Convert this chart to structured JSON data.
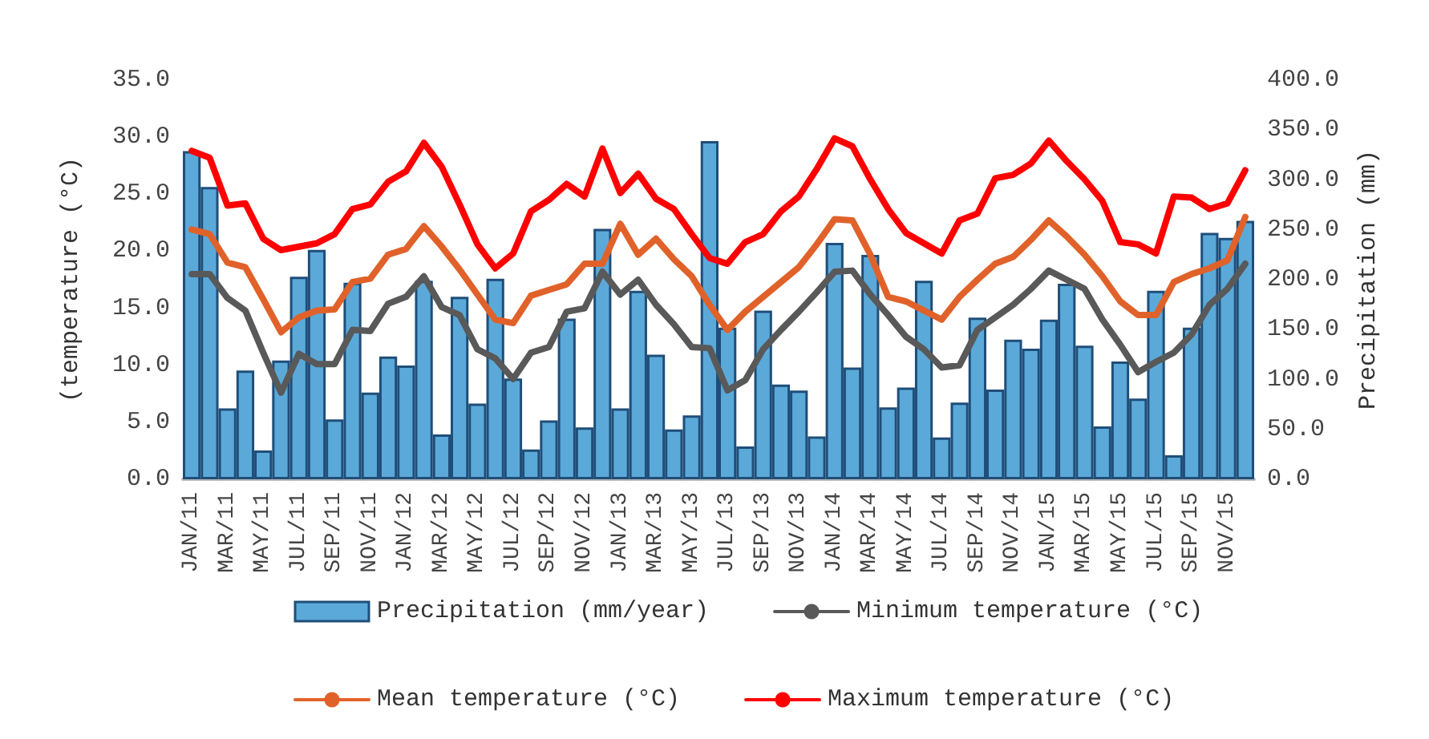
{
  "chart_data": {
    "type": "line",
    "ylabel": "(temperature (°C)",
    "y2label": "Precipitation (mm)",
    "categories": [
      "JAN/11",
      null,
      "MAR/11",
      null,
      "MAY/11",
      null,
      "JUL/11",
      null,
      "SEP/11",
      null,
      "NOV/11",
      null,
      "JAN/12",
      null,
      "MAR/12",
      null,
      "MAY/12",
      null,
      "JUL/12",
      null,
      "SEP/12",
      null,
      "NOV/12",
      null,
      "JAN/13",
      null,
      "MAR/13",
      null,
      "MAY/13",
      null,
      "JUL/13",
      null,
      "SEP/13",
      null,
      "NOV/13",
      null,
      "JAN/14",
      null,
      "MAR/14",
      null,
      "MAY/14",
      null,
      "JUL/14",
      null,
      "SEP/14",
      null,
      "NOV/14",
      null,
      "JAN/15",
      null,
      "MAR/15",
      null,
      "MAY/15",
      null,
      "JUL/15",
      null,
      "SEP/15",
      null,
      "NOV/15",
      null
    ],
    "series": [
      {
        "name": "Precipitation (mm/year)",
        "type": "bar",
        "axis": "y2",
        "color": "#5ba9d9",
        "values": [
          329,
          293,
          71,
          109,
          29,
          119,
          203,
          230,
          60,
          197,
          87,
          123,
          114,
          199,
          45,
          183,
          76,
          201,
          101,
          30,
          59,
          161,
          52,
          251,
          71,
          189,
          125,
          50,
          64,
          339,
          152,
          33,
          169,
          95,
          89,
          43,
          237,
          112,
          225,
          72,
          92,
          199,
          42,
          77,
          162,
          90,
          140,
          131,
          160,
          196,
          134,
          53,
          118,
          81,
          189,
          24,
          152,
          247,
          242,
          259
        ]
      },
      {
        "name": "Minimum temperature (°C)",
        "color": "#595959",
        "values": [
          18.0,
          18.0,
          15.9,
          14.8,
          11.1,
          7.6,
          11.0,
          10.1,
          10.1,
          13.1,
          13.0,
          15.4,
          16.0,
          17.8,
          15.1,
          14.4,
          11.4,
          10.6,
          8.8,
          11.1,
          11.6,
          14.7,
          15.0,
          18.2,
          16.2,
          17.5,
          15.3,
          13.6,
          11.6,
          11.5,
          7.8,
          8.7,
          11.4,
          13.1,
          14.7,
          16.4,
          18.2,
          18.3,
          16.2,
          14.4,
          12.5,
          11.4,
          9.8,
          10.0,
          13.1,
          14.2,
          15.3,
          16.7,
          18.3,
          17.5,
          16.7,
          14.0,
          11.8,
          9.4,
          10.3,
          11.1,
          12.7,
          15.3,
          16.7,
          18.9
        ]
      },
      {
        "name": "Mean temperature (°C)",
        "color": "#e0622a",
        "values": [
          21.9,
          21.5,
          19.0,
          18.6,
          15.8,
          12.9,
          14.2,
          14.8,
          14.9,
          17.3,
          17.6,
          19.7,
          20.2,
          22.2,
          20.4,
          18.4,
          16.2,
          14.0,
          13.7,
          16.1,
          16.6,
          17.1,
          18.9,
          18.9,
          22.4,
          19.7,
          21.1,
          19.3,
          17.8,
          15.3,
          13.1,
          14.7,
          16.0,
          17.3,
          18.6,
          20.6,
          22.8,
          22.7,
          19.7,
          16.0,
          15.6,
          14.8,
          14.0,
          16.0,
          17.5,
          18.9,
          19.5,
          21.0,
          22.7,
          21.3,
          19.7,
          17.8,
          15.6,
          14.4,
          14.4,
          17.3,
          18.0,
          18.5,
          19.2,
          23.0
        ]
      },
      {
        "name": "Maximum temperature (°C)",
        "color": "#ff0000",
        "values": [
          28.8,
          28.2,
          24.0,
          24.2,
          21.1,
          20.1,
          20.4,
          20.7,
          21.5,
          23.7,
          24.1,
          26.1,
          27.0,
          29.5,
          27.4,
          24.1,
          20.6,
          18.5,
          19.8,
          23.5,
          24.5,
          25.9,
          24.8,
          29.0,
          25.1,
          26.8,
          24.6,
          23.7,
          21.5,
          19.4,
          18.9,
          20.8,
          21.5,
          23.5,
          24.8,
          27.2,
          29.9,
          29.2,
          26.3,
          23.7,
          21.6,
          20.7,
          19.8,
          22.7,
          23.3,
          26.4,
          26.7,
          27.7,
          29.7,
          27.9,
          26.3,
          24.4,
          20.8,
          20.6,
          19.8,
          24.8,
          24.7,
          23.7,
          24.2,
          27.1
        ]
      }
    ],
    "ylim": [
      0,
      35
    ],
    "yticks": [
      {
        "value": 0,
        "label": "0.0"
      },
      {
        "value": 5,
        "label": "5.0"
      },
      {
        "value": 10,
        "label": "10.0"
      },
      {
        "value": 15,
        "label": "15.0"
      },
      {
        "value": 20,
        "label": "20.0"
      },
      {
        "value": 25,
        "label": "25.0"
      },
      {
        "value": 30,
        "label": "30.0"
      },
      {
        "value": 35,
        "label": "35.0"
      }
    ],
    "y2lim": [
      0,
      400
    ],
    "y2ticks": [
      {
        "value": 0,
        "label": "0.0"
      },
      {
        "value": 50,
        "label": "50.0"
      },
      {
        "value": 100,
        "label": "100.0"
      },
      {
        "value": 150,
        "label": "150.0"
      },
      {
        "value": 200,
        "label": "200.0"
      },
      {
        "value": 250,
        "label": "250.0"
      },
      {
        "value": 300,
        "label": "300.0"
      },
      {
        "value": 350,
        "label": "350.0"
      },
      {
        "value": 400,
        "label": "400.0"
      }
    ],
    "legend": "bottom",
    "grid": false,
    "marker": "none",
    "line_style": "solid"
  }
}
